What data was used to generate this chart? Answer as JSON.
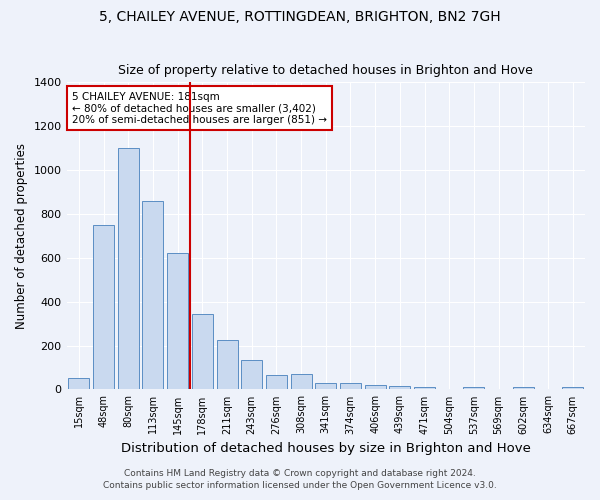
{
  "title": "5, CHAILEY AVENUE, ROTTINGDEAN, BRIGHTON, BN2 7GH",
  "subtitle": "Size of property relative to detached houses in Brighton and Hove",
  "xlabel": "Distribution of detached houses by size in Brighton and Hove",
  "ylabel": "Number of detached properties",
  "footer1": "Contains HM Land Registry data © Crown copyright and database right 2024.",
  "footer2": "Contains public sector information licensed under the Open Government Licence v3.0.",
  "categories": [
    "15sqm",
    "48sqm",
    "80sqm",
    "113sqm",
    "145sqm",
    "178sqm",
    "211sqm",
    "243sqm",
    "276sqm",
    "308sqm",
    "341sqm",
    "374sqm",
    "406sqm",
    "439sqm",
    "471sqm",
    "504sqm",
    "537sqm",
    "569sqm",
    "602sqm",
    "634sqm",
    "667sqm"
  ],
  "values": [
    50,
    750,
    1100,
    860,
    620,
    345,
    225,
    135,
    65,
    70,
    30,
    30,
    22,
    15,
    12,
    0,
    10,
    0,
    10,
    0,
    10
  ],
  "bar_color": "#c9d9ef",
  "bar_edgecolor": "#5b8ec4",
  "red_line_x": 4.5,
  "red_line_color": "#cc0000",
  "annotation_text": "5 CHAILEY AVENUE: 181sqm\n← 80% of detached houses are smaller (3,402)\n20% of semi-detached houses are larger (851) →",
  "annotation_box_edgecolor": "#cc0000",
  "annotation_box_facecolor": "#ffffff",
  "ylim": [
    0,
    1400
  ],
  "yticks": [
    0,
    200,
    400,
    600,
    800,
    1000,
    1200,
    1400
  ],
  "background_color": "#eef2fa",
  "grid_color": "#ffffff",
  "title_fontsize": 10,
  "subtitle_fontsize": 9,
  "xlabel_fontsize": 9.5,
  "ylabel_fontsize": 8.5,
  "footer_fontsize": 6.5
}
